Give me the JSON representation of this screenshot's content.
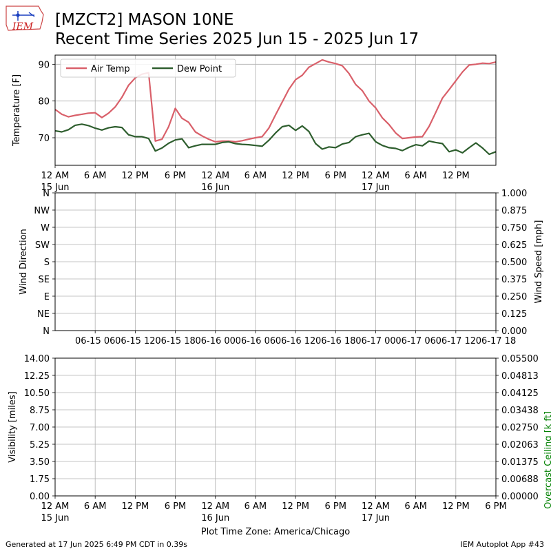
{
  "header": {
    "logo_text": "IEM",
    "title_line1": "[MZCT2] MASON 10NE",
    "title_line2": "Recent Time Series 2025 Jun 15 - 2025 Jun 17"
  },
  "footer": {
    "generated": "Generated at 17 Jun 2025 6:49 PM CDT in 0.39s",
    "app": "IEM Autoplot App #43"
  },
  "colors": {
    "air_temp": "#d9606a",
    "dew_point": "#2e5e2e",
    "grid": "#b0b0b0",
    "ceiling_label": "#008000"
  },
  "chart_data": [
    {
      "type": "line",
      "ylabel": "Temperature [F]",
      "ylim": [
        62.5,
        92.5
      ],
      "yticks": [
        70,
        80,
        90
      ],
      "xlim": [
        0,
        66
      ],
      "grid": true,
      "legend_position": "top-left",
      "xtick_hours": [
        0,
        6,
        12,
        18,
        24,
        30,
        36,
        42,
        48,
        54,
        60
      ],
      "xtick_labels": [
        "12 AM",
        "6 AM",
        "12 PM",
        "6 PM",
        "12 AM",
        "6 AM",
        "12 PM",
        "6 PM",
        "12 AM",
        "6 AM",
        "12 PM"
      ],
      "xtick_sublabels": [
        "15 Jun",
        "",
        "",
        "",
        "16 Jun",
        "",
        "",
        "",
        "17 Jun",
        "",
        ""
      ],
      "series": [
        {
          "name": "Air Temp",
          "color": "#d9606a",
          "x": [
            0,
            1,
            2,
            3,
            4,
            5,
            6,
            7,
            8,
            9,
            10,
            11,
            12,
            13,
            14,
            15,
            16,
            17,
            18,
            19,
            20,
            21,
            22,
            23,
            24,
            25,
            26,
            27,
            28,
            29,
            30,
            31,
            32,
            33,
            34,
            35,
            36,
            37,
            38,
            39,
            40,
            41,
            42,
            43,
            44,
            45,
            46,
            47,
            48,
            49,
            50,
            51,
            52,
            53,
            54,
            55,
            56,
            57,
            58,
            59,
            60,
            61,
            62,
            63,
            64,
            65,
            66
          ],
          "values": [
            77.7,
            76.4,
            75.7,
            76.1,
            76.4,
            76.7,
            76.8,
            75.5,
            76.7,
            78.4,
            81,
            84.3,
            86.3,
            87.3,
            87.7,
            69.1,
            69.6,
            73,
            78,
            75.3,
            74.2,
            71.6,
            70.5,
            69.6,
            68.9,
            69.1,
            69.1,
            68.9,
            69.2,
            69.6,
            70,
            70.3,
            72.6,
            76.2,
            79.7,
            83.2,
            85.8,
            87,
            89.2,
            90.2,
            91.2,
            90.6,
            90.2,
            89.6,
            87.5,
            84.5,
            82.8,
            80,
            78.1,
            75.4,
            73.6,
            71.3,
            69.8,
            70,
            70.2,
            70.3,
            73.1,
            76.9,
            80.8,
            83.1,
            85.5,
            87.9,
            89.8,
            90,
            90.3,
            90.2,
            90.6
          ]
        },
        {
          "name": "Dew Point",
          "color": "#2e5e2e",
          "x": [
            0,
            1,
            2,
            3,
            4,
            5,
            6,
            7,
            8,
            9,
            10,
            11,
            12,
            13,
            14,
            15,
            16,
            17,
            18,
            19,
            20,
            21,
            22,
            23,
            24,
            25,
            26,
            27,
            28,
            29,
            30,
            31,
            32,
            33,
            34,
            35,
            36,
            37,
            38,
            39,
            40,
            41,
            42,
            43,
            44,
            45,
            46,
            47,
            48,
            49,
            50,
            51,
            52,
            53,
            54,
            55,
            56,
            57,
            58,
            59,
            60,
            61,
            62,
            63,
            64,
            65,
            66
          ],
          "values": [
            71.9,
            71.6,
            72.2,
            73.4,
            73.7,
            73.3,
            72.6,
            72.1,
            72.7,
            73.0,
            72.8,
            70.8,
            70.3,
            70.3,
            69.8,
            66.4,
            67.2,
            68.5,
            69.4,
            69.7,
            67.3,
            67.8,
            68.2,
            68.2,
            68.2,
            68.7,
            68.9,
            68.4,
            68.2,
            68.1,
            67.9,
            67.7,
            69.3,
            71.3,
            73.0,
            73.4,
            72.0,
            73.2,
            71.7,
            68.4,
            66.9,
            67.5,
            67.3,
            68.3,
            68.7,
            70.3,
            70.8,
            71.2,
            68.9,
            67.9,
            67.3,
            67.1,
            66.5,
            67.4,
            68.1,
            67.8,
            69.1,
            68.7,
            68.4,
            66.2,
            66.7,
            65.9,
            67.3,
            68.6,
            67.2,
            65.5,
            66.2
          ]
        }
      ]
    },
    {
      "type": "line",
      "ylabel": "Wind Direction",
      "ylabel_right": "Wind Speed [mph]",
      "yticks_left": [
        "N",
        "NE",
        "E",
        "SE",
        "S",
        "SW",
        "W",
        "NW",
        "N"
      ],
      "yticks_right": [
        "0.000",
        "0.125",
        "0.250",
        "0.375",
        "0.500",
        "0.625",
        "0.750",
        "0.875",
        "1.000"
      ],
      "ylim_right": [
        0,
        1
      ],
      "grid": true,
      "xtick_hours": [
        6,
        12,
        18,
        24,
        30,
        36,
        42,
        48,
        54,
        60,
        66
      ],
      "xtick_labels": [
        "06-15 06",
        "06-15 12",
        "06-15 18",
        "06-16 00",
        "06-16 06",
        "06-16 12",
        "06-16 18",
        "06-17 00",
        "06-17 06",
        "06-17 12",
        "06-17 18"
      ],
      "series": []
    },
    {
      "type": "line",
      "ylabel": "Visibility [miles]",
      "ylabel_right": "Overcast Ceiling [k ft]",
      "yticks_left": [
        "0.00",
        "1.75",
        "3.50",
        "5.25",
        "7.00",
        "8.75",
        "10.50",
        "12.25",
        "14.00"
      ],
      "yticks_right": [
        "0.00000",
        "0.00688",
        "0.01375",
        "0.02063",
        "0.02750",
        "0.03438",
        "0.04125",
        "0.04813",
        "0.05500"
      ],
      "ylim": [
        0,
        14
      ],
      "ylim_right": [
        0,
        0.055
      ],
      "grid": true,
      "xtick_hours": [
        0,
        6,
        12,
        18,
        24,
        30,
        36,
        42,
        48,
        54,
        60,
        66
      ],
      "xtick_labels": [
        "12 AM",
        "6 AM",
        "12 PM",
        "6 PM",
        "12 AM",
        "6 AM",
        "12 PM",
        "6 PM",
        "12 AM",
        "6 AM",
        "12 PM",
        "6 PM"
      ],
      "xtick_sublabels": [
        "15 Jun",
        "",
        "",
        "",
        "16 Jun",
        "",
        "",
        "",
        "17 Jun",
        "",
        "",
        ""
      ],
      "xlabel": "Plot Time Zone: America/Chicago",
      "series": []
    }
  ]
}
